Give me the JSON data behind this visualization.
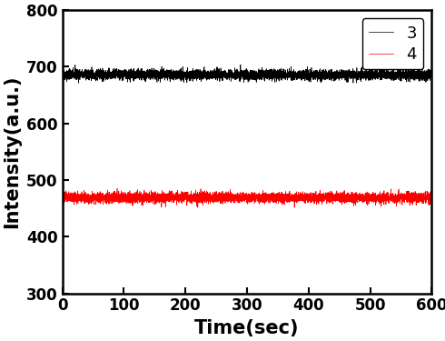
{
  "title": "",
  "xlabel": "Time(sec)",
  "ylabel": "Intensity(a.u.)",
  "xlim": [
    0,
    600
  ],
  "ylim": [
    300,
    800
  ],
  "yticks": [
    300,
    400,
    500,
    600,
    700,
    800
  ],
  "xticks": [
    0,
    100,
    200,
    300,
    400,
    500,
    600
  ],
  "line1_label": "3",
  "line1_color": "#000000",
  "line1_mean": 686,
  "line1_noise": 4.5,
  "line2_label": "4",
  "line2_color": "#ff0000",
  "line2_mean": 469,
  "line2_noise": 4.5,
  "n_points": 6000,
  "legend_loc": "upper right",
  "background_color": "#ffffff",
  "linewidth": 0.5,
  "font_size": 13,
  "label_font_size": 15,
  "tick_font_size": 12
}
